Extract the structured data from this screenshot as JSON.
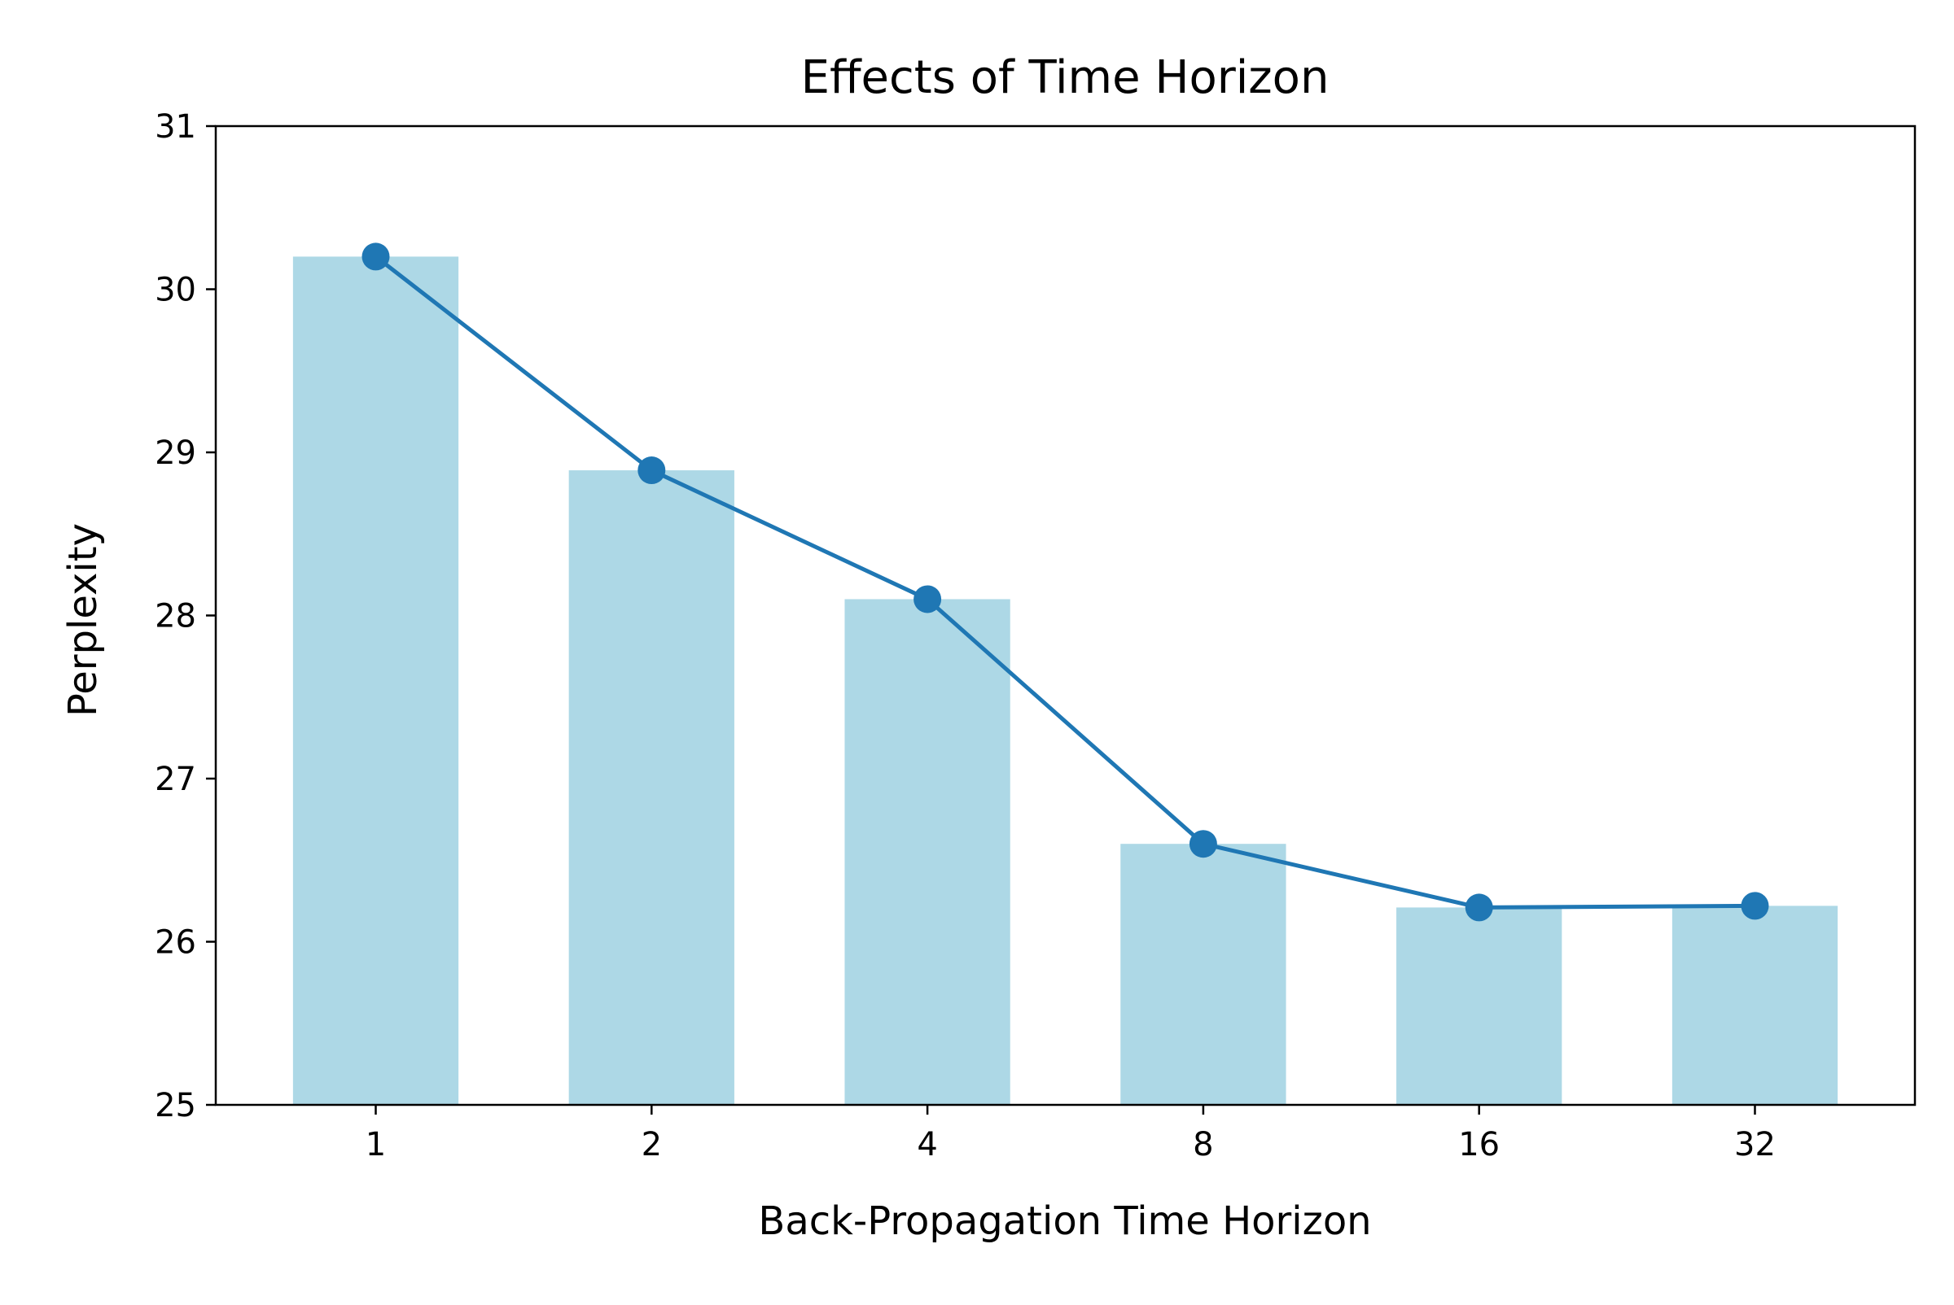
{
  "chart_data": {
    "type": "bar",
    "title": "Effects of Time Horizon",
    "xlabel": "Back-Propagation Time Horizon",
    "ylabel": "Perplexity",
    "categories": [
      "1",
      "2",
      "4",
      "8",
      "16",
      "32"
    ],
    "ylim": [
      25,
      31
    ],
    "yticks": [
      25,
      26,
      27,
      28,
      29,
      30,
      31
    ],
    "grid": false,
    "series": [
      {
        "kind": "bar",
        "values": [
          30.2,
          28.89,
          28.1,
          26.6,
          26.21,
          26.22
        ],
        "color": "#add8e6"
      },
      {
        "kind": "line",
        "values": [
          30.2,
          28.89,
          28.1,
          26.6,
          26.21,
          26.22
        ],
        "color": "#1f77b4",
        "marker": "circle"
      }
    ]
  }
}
